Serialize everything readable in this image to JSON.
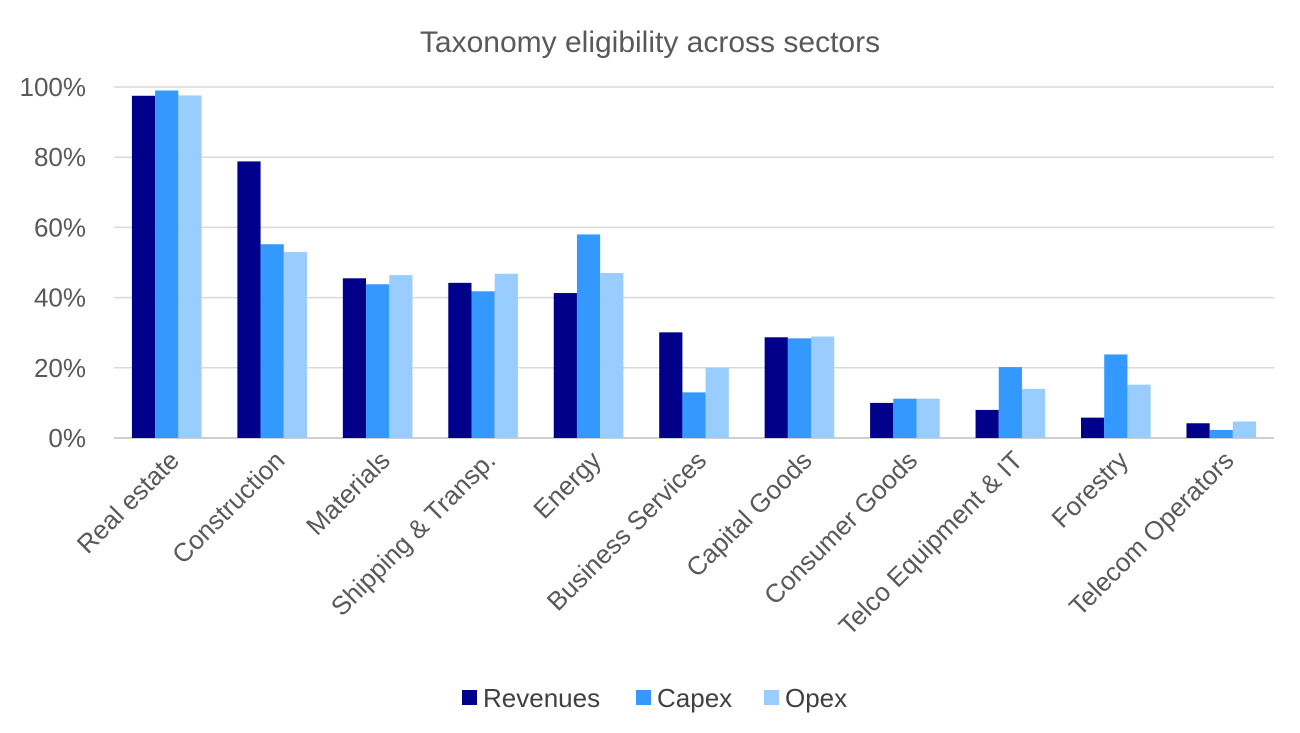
{
  "chart_data": {
    "type": "bar",
    "title": "Taxonomy eligibility across sectors",
    "categories": [
      "Real estate",
      "Construction",
      "Materials",
      "Shipping & Transp.",
      "Energy",
      "Business Services",
      "Capital Goods",
      "Consumer Goods",
      "Telco Equipment & IT",
      "Forestry",
      "Telecom Operators"
    ],
    "series": [
      {
        "name": "Revenues",
        "color": "#00008b",
        "values": [
          97.5,
          78.8,
          45.5,
          44.2,
          41.3,
          30.1,
          28.7,
          10.0,
          8.0,
          5.8,
          4.2
        ]
      },
      {
        "name": "Capex",
        "color": "#3399ff",
        "values": [
          99.0,
          55.2,
          43.8,
          41.8,
          58.0,
          13.0,
          28.4,
          11.2,
          20.2,
          23.8,
          2.3
        ]
      },
      {
        "name": "Opex",
        "color": "#99ccff",
        "values": [
          97.6,
          53.0,
          46.4,
          46.8,
          47.0,
          20.0,
          28.9,
          11.2,
          14.0,
          15.2,
          4.7
        ]
      }
    ],
    "yticks": [
      "0%",
      "20%",
      "40%",
      "60%",
      "80%",
      "100%"
    ],
    "ylim": [
      0,
      100
    ],
    "xlabel": "",
    "ylabel": "",
    "grid": true,
    "legend_position": "bottom"
  }
}
